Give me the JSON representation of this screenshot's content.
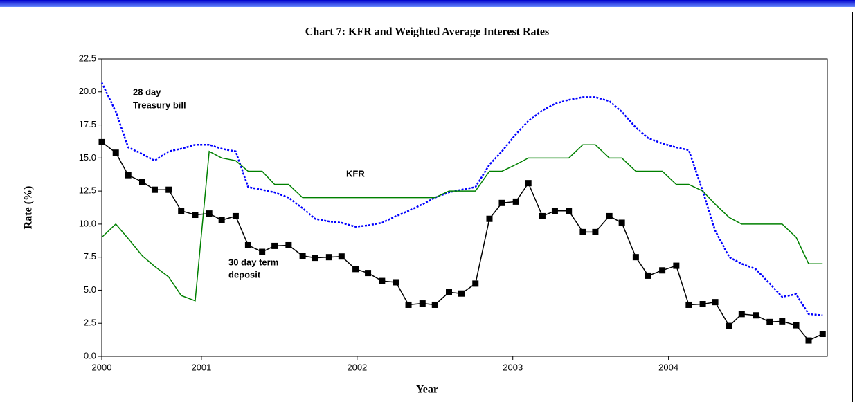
{
  "chart_data": {
    "type": "line",
    "title": "Chart 7: KFR and Weighted Average Interest Rates",
    "ylabel": "Rate (%)",
    "xlabel": "Year",
    "annotations": [
      "28 day",
      "Treasury bill",
      "KFR",
      "30 day term",
      "deposit"
    ],
    "xlim": [
      2000.36,
      2005.02
    ],
    "xticks": [
      {
        "value": 2000.36,
        "label": "2000"
      },
      2001,
      2002,
      2003,
      2004
    ],
    "ylim": [
      0,
      22.5
    ],
    "yticks": [
      {
        "value": 0,
        "label": "0.0"
      },
      2.5,
      {
        "value": 5,
        "label": "5.0"
      },
      7.5,
      {
        "value": 10,
        "label": "10.0"
      },
      12.5,
      {
        "value": 15,
        "label": "15.0"
      },
      17.5,
      {
        "value": 20,
        "label": "20.0"
      },
      22.5
    ],
    "x": [
      2000.36,
      2000.45,
      2000.53,
      2000.62,
      2000.7,
      2000.79,
      2000.87,
      2000.96,
      2001.05,
      2001.13,
      2001.22,
      2001.3,
      2001.39,
      2001.47,
      2001.56,
      2001.65,
      2001.73,
      2001.82,
      2001.9,
      2001.99,
      2002.07,
      2002.16,
      2002.25,
      2002.33,
      2002.42,
      2002.5,
      2002.59,
      2002.67,
      2002.76,
      2002.85,
      2002.93,
      2003.02,
      2003.1,
      2003.19,
      2003.27,
      2003.36,
      2003.45,
      2003.53,
      2003.62,
      2003.7,
      2003.79,
      2003.87,
      2003.96,
      2004.05,
      2004.13,
      2004.22,
      2004.3,
      2004.39,
      2004.47,
      2004.56,
      2004.65,
      2004.73,
      2004.82,
      2004.9,
      2004.99
    ],
    "series": [
      {
        "name": "28 day Treasury bill",
        "color": "#0000ff",
        "style": "dotted",
        "values": [
          20.7,
          18.5,
          15.8,
          15.3,
          14.8,
          15.5,
          15.7,
          16.0,
          16.0,
          15.7,
          15.5,
          12.8,
          12.6,
          12.4,
          12.0,
          11.2,
          10.4,
          10.2,
          10.1,
          9.8,
          9.9,
          10.1,
          10.6,
          11.0,
          11.5,
          12.0,
          12.4,
          12.6,
          12.8,
          14.5,
          15.5,
          16.8,
          17.8,
          18.6,
          19.1,
          19.4,
          19.6,
          19.6,
          19.3,
          18.5,
          17.3,
          16.5,
          16.1,
          15.8,
          15.6,
          12.5,
          9.5,
          7.5,
          7.0,
          6.6,
          5.5,
          4.5,
          4.7,
          3.2,
          3.1
        ]
      },
      {
        "name": "KFR",
        "color": "#008000",
        "style": "solid",
        "values": [
          9.0,
          10.0,
          8.9,
          7.6,
          6.8,
          6.0,
          4.6,
          4.2,
          15.5,
          15.0,
          14.8,
          14.0,
          14.0,
          13.0,
          13.0,
          12.0,
          12.0,
          12.0,
          12.0,
          12.0,
          12.0,
          12.0,
          12.0,
          12.0,
          12.0,
          12.0,
          12.5,
          12.5,
          12.5,
          14.0,
          14.0,
          14.5,
          15.0,
          15.0,
          15.0,
          15.0,
          16.0,
          16.0,
          15.0,
          15.0,
          14.0,
          14.0,
          14.0,
          13.0,
          13.0,
          12.5,
          11.5,
          10.5,
          10.0,
          10.0,
          10.0,
          10.0,
          9.0,
          7.0,
          7.0
        ]
      },
      {
        "name": "30 day term deposit",
        "color": "#000000",
        "style": "markers",
        "values": [
          16.2,
          15.4,
          13.7,
          13.2,
          12.6,
          12.6,
          11.0,
          10.7,
          10.8,
          10.3,
          10.6,
          8.4,
          7.9,
          8.35,
          8.4,
          7.6,
          7.45,
          7.5,
          7.55,
          6.6,
          6.3,
          5.7,
          5.6,
          3.9,
          4.0,
          3.9,
          4.85,
          4.75,
          5.5,
          10.4,
          11.6,
          11.7,
          13.1,
          10.6,
          11.0,
          11.0,
          9.4,
          9.4,
          10.6,
          10.1,
          7.5,
          6.1,
          6.5,
          6.85,
          3.9,
          3.95,
          4.1,
          2.3,
          3.2,
          3.1,
          2.6,
          2.65,
          2.35,
          1.2,
          1.7
        ]
      }
    ]
  }
}
